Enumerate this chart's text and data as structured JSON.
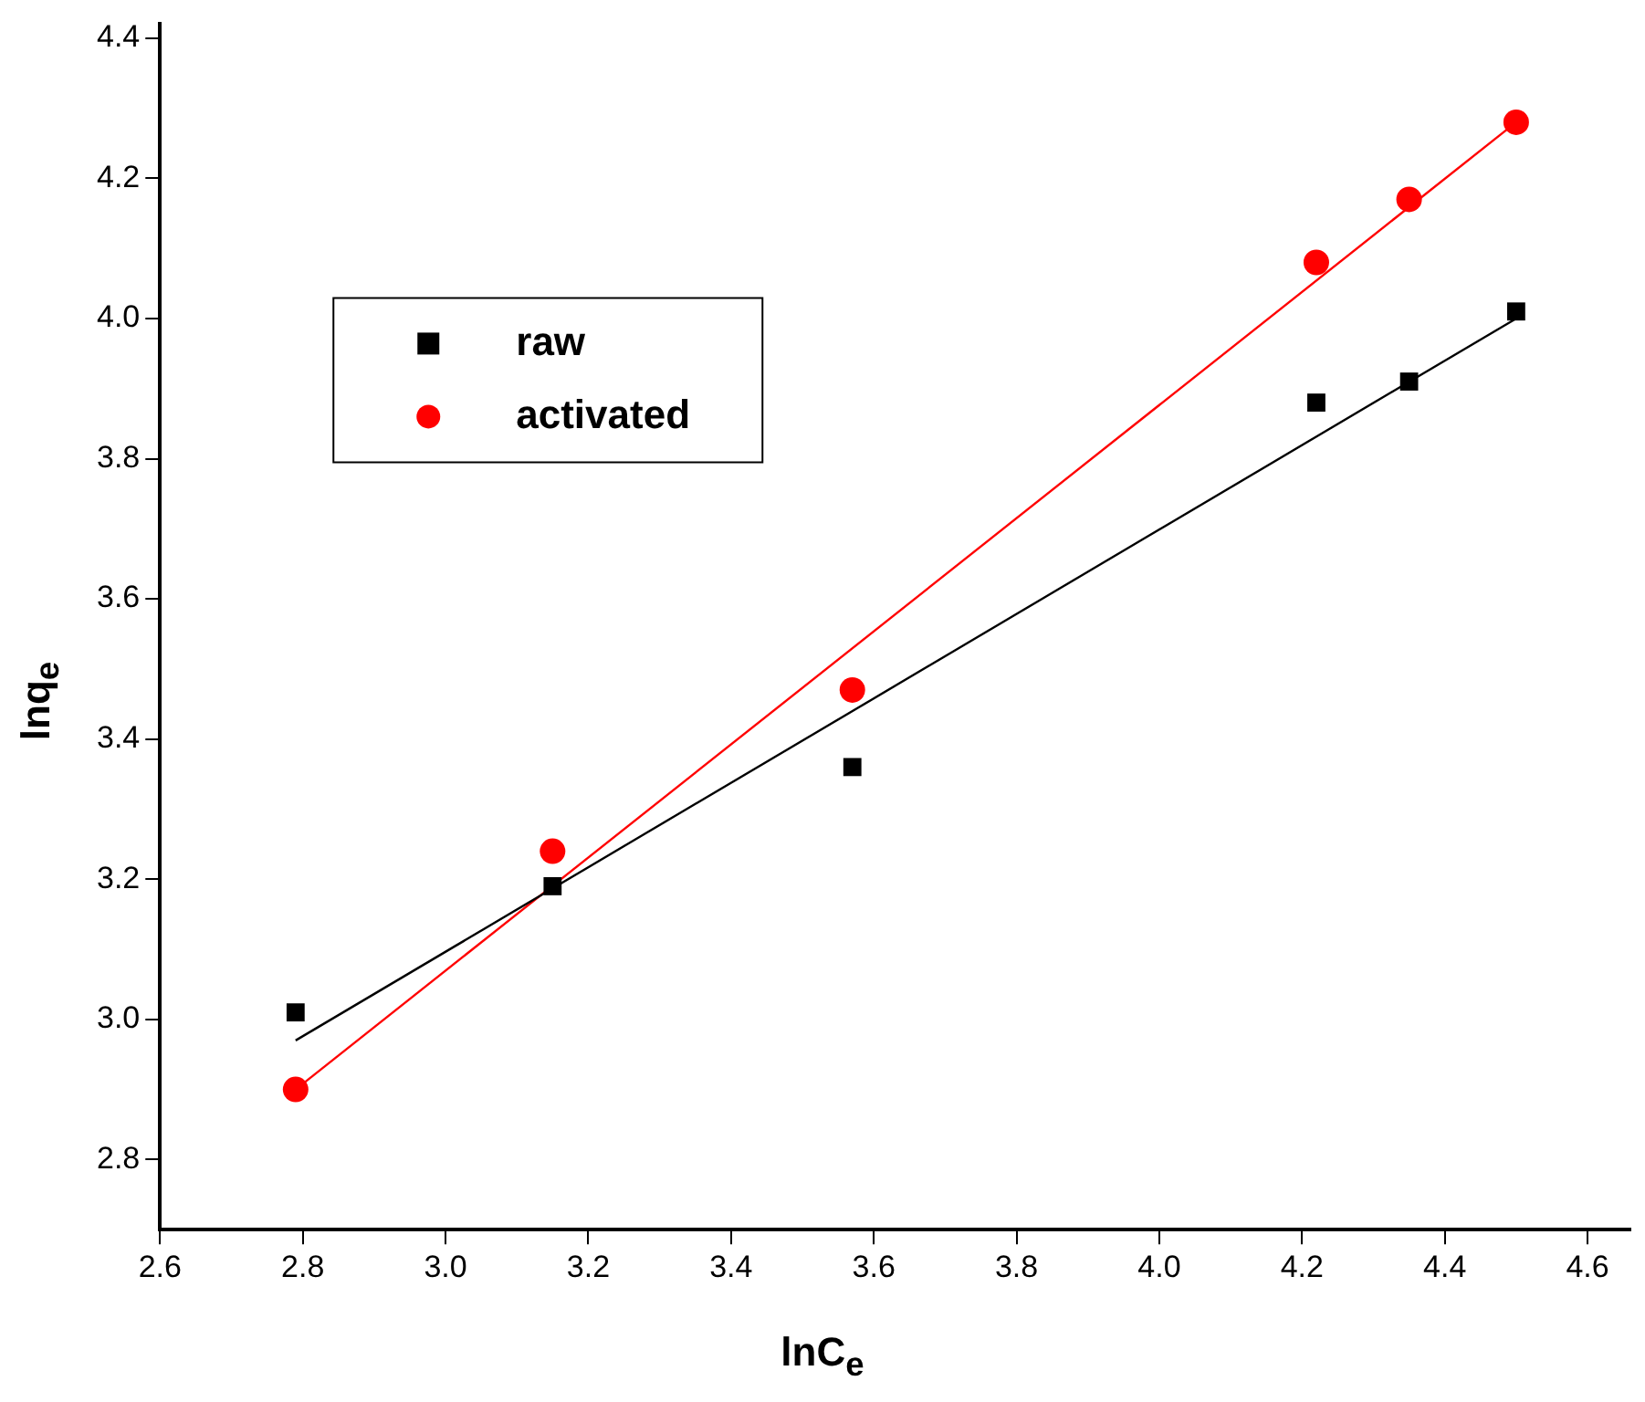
{
  "chart_data": {
    "type": "scatter",
    "xlabel": "lnC$_{e}$",
    "ylabel": "lnq$_{e}$",
    "xlim": [
      2.6,
      4.66
    ],
    "ylim": [
      2.7,
      4.42
    ],
    "xticks": [
      2.6,
      2.8,
      {
        "value": 3,
        "label": "3.0"
      },
      3.2,
      3.4,
      3.6,
      3.8,
      {
        "value": 4,
        "label": "4.0"
      },
      4.2,
      4.4,
      4.6
    ],
    "yticks": [
      2.8,
      {
        "value": 3,
        "label": "3.0"
      },
      3.2,
      3.4,
      3.6,
      3.8,
      {
        "value": 4,
        "label": "4.0"
      },
      4.2,
      4.4
    ],
    "grid": false,
    "legend": "top left",
    "series": [
      {
        "name": "raw",
        "type": "scatter",
        "marker": "square",
        "color": "#000000",
        "x": [
          2.79,
          3.15,
          3.57,
          4.22,
          4.35,
          4.5
        ],
        "values": [
          3.01,
          3.19,
          3.36,
          3.88,
          3.91,
          4.01
        ]
      },
      {
        "name": "activated",
        "type": "scatter",
        "marker": "circle",
        "color": "#ff0000",
        "x": [
          2.79,
          3.15,
          3.57,
          4.22,
          4.35,
          4.5
        ],
        "values": [
          2.9,
          3.24,
          3.47,
          4.08,
          4.17,
          4.28
        ]
      },
      {
        "type": "line",
        "marker": "none",
        "color": "#000000",
        "x": [
          2.79,
          4.5
        ],
        "values": [
          2.97,
          4.0
        ]
      },
      {
        "type": "line",
        "marker": "none",
        "color": "#ff0000",
        "x": [
          2.79,
          4.5
        ],
        "values": [
          2.9,
          4.28
        ]
      }
    ]
  }
}
